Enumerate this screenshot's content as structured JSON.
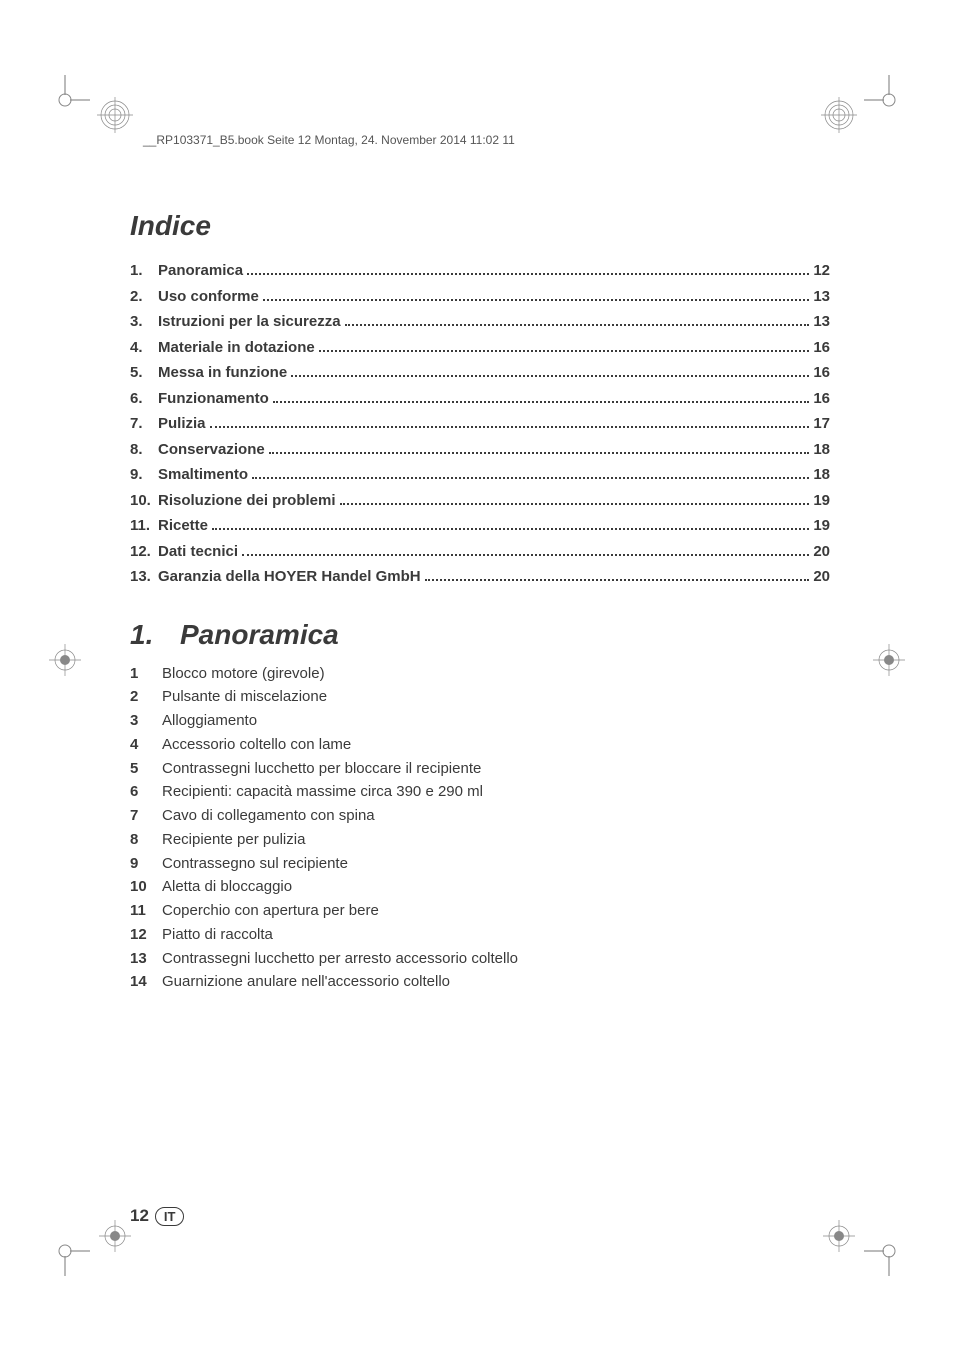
{
  "header": {
    "filename_line": "__RP103371_B5.book  Seite 12  Montag, 24. November 2014  11:02 11"
  },
  "toc": {
    "title": "Indice",
    "items": [
      {
        "num": "1.",
        "label": "Panoramica",
        "page": "12"
      },
      {
        "num": "2.",
        "label": "Uso conforme",
        "page": "13"
      },
      {
        "num": "3.",
        "label": "Istruzioni per la sicurezza",
        "page": "13"
      },
      {
        "num": "4.",
        "label": "Materiale in dotazione",
        "page": "16"
      },
      {
        "num": "5.",
        "label": "Messa in funzione",
        "page": "16"
      },
      {
        "num": "6.",
        "label": "Funzionamento",
        "page": "16"
      },
      {
        "num": "7.",
        "label": "Pulizia",
        "page": "17"
      },
      {
        "num": "8.",
        "label": "Conservazione",
        "page": "18"
      },
      {
        "num": "9.",
        "label": "Smaltimento",
        "page": "18"
      },
      {
        "num": "10.",
        "label": "Risoluzione dei problemi",
        "page": "19"
      },
      {
        "num": "11.",
        "label": "Ricette",
        "page": "19"
      },
      {
        "num": "12.",
        "label": "Dati tecnici",
        "page": "20"
      },
      {
        "num": "13.",
        "label": "Garanzia della HOYER Handel GmbH",
        "page": "20"
      }
    ]
  },
  "section": {
    "num": "1.",
    "title": "Panoramica",
    "items": [
      {
        "num": "1",
        "text": "Blocco motore (girevole)"
      },
      {
        "num": "2",
        "text": "Pulsante di miscelazione"
      },
      {
        "num": "3",
        "text": "Alloggiamento"
      },
      {
        "num": "4",
        "text": "Accessorio coltello con lame"
      },
      {
        "num": "5",
        "text": "Contrassegni lucchetto per bloccare il recipiente"
      },
      {
        "num": "6",
        "text": "Recipienti: capacità massime circa 390 e 290 ml"
      },
      {
        "num": "7",
        "text": "Cavo di collegamento con spina"
      },
      {
        "num": "8",
        "text": "Recipiente per pulizia"
      },
      {
        "num": "9",
        "text": "Contrassegno sul recipiente"
      },
      {
        "num": "10",
        "text": "Aletta di bloccaggio"
      },
      {
        "num": "11",
        "text": "Coperchio con apertura per bere"
      },
      {
        "num": "12",
        "text": "Piatto di raccolta"
      },
      {
        "num": "13",
        "text": "Contrassegni lucchetto per arresto accessorio coltello"
      },
      {
        "num": "14",
        "text": "Guarnizione anulare nell'accessorio coltello"
      }
    ]
  },
  "footer": {
    "page": "12",
    "lang": "IT"
  },
  "colors": {
    "text": "#3a3a3a",
    "background": "#ffffff"
  }
}
